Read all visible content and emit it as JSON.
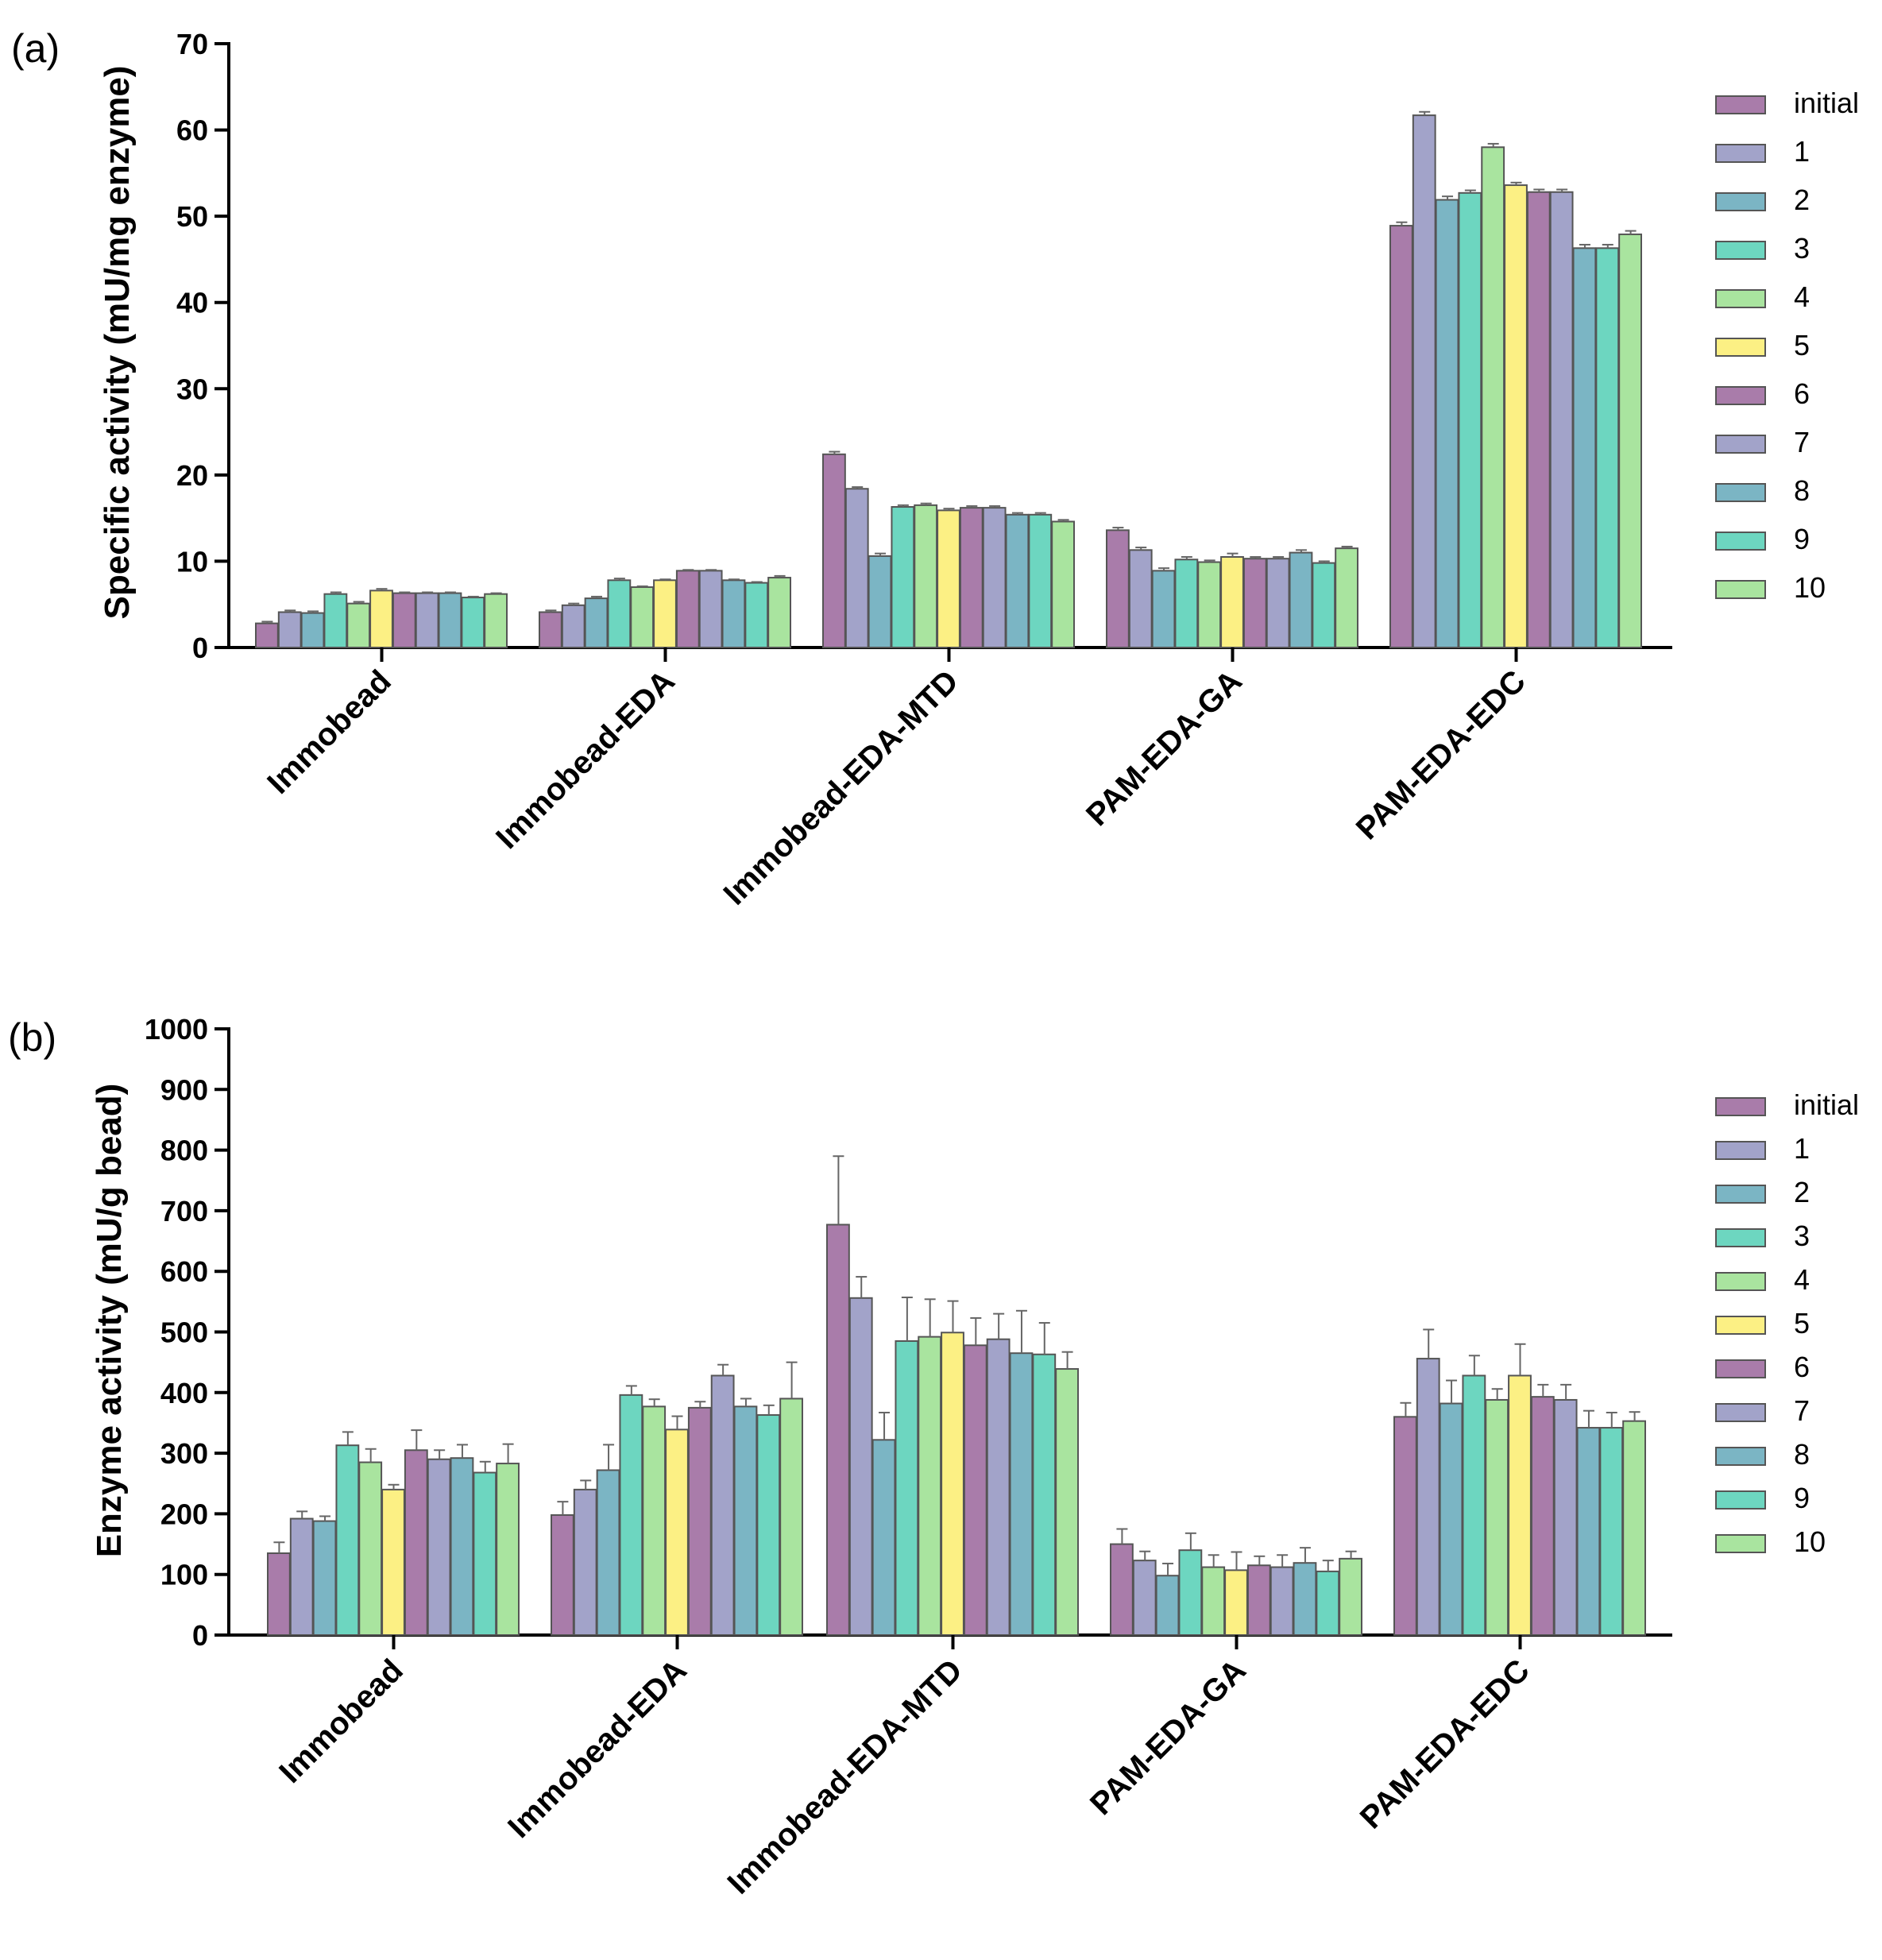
{
  "chart_data": [
    {
      "panel_label": "(a)",
      "type": "bar",
      "ylabel": "Specific activity (mU/mg enzyme)",
      "ylim": [
        0,
        70
      ],
      "yticks": [
        "0",
        "10",
        "20",
        "30",
        "40",
        "50",
        "60",
        "70"
      ],
      "categories": [
        "Immobead",
        "Immobead-EDA",
        "Immobead-EDA-MTD",
        "PAM-EDA-GA",
        "PAM-EDA-EDC"
      ],
      "legend_position": "right",
      "series": [
        {
          "name": "initial",
          "values": [
            2.8,
            4.1,
            22.4,
            13.6,
            48.9
          ],
          "errors": [
            0.2,
            0.2,
            0.3,
            0.3,
            0.4
          ]
        },
        {
          "name": "1",
          "values": [
            4.1,
            4.9,
            18.4,
            11.3,
            61.7
          ],
          "errors": [
            0.2,
            0.2,
            0.2,
            0.3,
            0.4
          ]
        },
        {
          "name": "2",
          "values": [
            4.0,
            5.7,
            10.6,
            8.9,
            51.9
          ],
          "errors": [
            0.2,
            0.2,
            0.3,
            0.3,
            0.4
          ]
        },
        {
          "name": "3",
          "values": [
            6.2,
            7.8,
            16.3,
            10.2,
            52.7
          ],
          "errors": [
            0.2,
            0.2,
            0.2,
            0.3,
            0.3
          ]
        },
        {
          "name": "4",
          "values": [
            5.1,
            7.0,
            16.5,
            9.9,
            58.0
          ],
          "errors": [
            0.2,
            0.1,
            0.2,
            0.2,
            0.4
          ]
        },
        {
          "name": "5",
          "values": [
            6.6,
            7.8,
            15.9,
            10.5,
            53.6
          ],
          "errors": [
            0.2,
            0.1,
            0.2,
            0.4,
            0.3
          ]
        },
        {
          "name": "6",
          "values": [
            6.3,
            8.9,
            16.2,
            10.3,
            52.8
          ],
          "errors": [
            0.1,
            0.1,
            0.2,
            0.2,
            0.3
          ]
        },
        {
          "name": "7",
          "values": [
            6.3,
            8.9,
            16.2,
            10.3,
            52.8
          ],
          "errors": [
            0.1,
            0.1,
            0.2,
            0.2,
            0.3
          ]
        },
        {
          "name": "8",
          "values": [
            6.3,
            7.8,
            15.4,
            11.0,
            46.3
          ],
          "errors": [
            0.1,
            0.1,
            0.2,
            0.3,
            0.4
          ]
        },
        {
          "name": "9",
          "values": [
            5.8,
            7.5,
            15.4,
            9.8,
            46.3
          ],
          "errors": [
            0.1,
            0.1,
            0.2,
            0.2,
            0.4
          ]
        },
        {
          "name": "10",
          "values": [
            6.2,
            8.1,
            14.6,
            11.5,
            47.9
          ],
          "errors": [
            0.1,
            0.2,
            0.2,
            0.2,
            0.4
          ]
        }
      ]
    },
    {
      "panel_label": "(b)",
      "type": "bar",
      "ylabel": "Enzyme activity (mU/g bead)",
      "ylim": [
        0,
        1000
      ],
      "yticks": [
        "0",
        "100",
        "200",
        "300",
        "400",
        "500",
        "600",
        "700",
        "800",
        "900",
        "1000"
      ],
      "categories": [
        "Immobead",
        "Immobead-EDA",
        "Immobead-EDA-MTD",
        "PAM-EDA-GA",
        "PAM-EDA-EDC"
      ],
      "legend_position": "right",
      "series": [
        {
          "name": "initial",
          "values": [
            135,
            198,
            677,
            150,
            360
          ],
          "errors": [
            18,
            22,
            113,
            25,
            23
          ]
        },
        {
          "name": "1",
          "values": [
            192,
            240,
            556,
            123,
            456
          ],
          "errors": [
            12,
            15,
            35,
            15,
            48
          ]
        },
        {
          "name": "2",
          "values": [
            188,
            272,
            322,
            98,
            382
          ],
          "errors": [
            8,
            42,
            45,
            20,
            38
          ]
        },
        {
          "name": "3",
          "values": [
            313,
            396,
            485,
            140,
            428
          ],
          "errors": [
            22,
            15,
            72,
            28,
            33
          ]
        },
        {
          "name": "4",
          "values": [
            285,
            377,
            492,
            112,
            388
          ],
          "errors": [
            22,
            12,
            62,
            20,
            18
          ]
        },
        {
          "name": "5",
          "values": [
            240,
            339,
            499,
            107,
            428
          ],
          "errors": [
            8,
            22,
            52,
            30,
            52
          ]
        },
        {
          "name": "6",
          "values": [
            305,
            375,
            478,
            115,
            393
          ],
          "errors": [
            33,
            10,
            45,
            15,
            20
          ]
        },
        {
          "name": "7",
          "values": [
            290,
            428,
            488,
            112,
            388
          ],
          "errors": [
            15,
            18,
            42,
            20,
            25
          ]
        },
        {
          "name": "8",
          "values": [
            292,
            377,
            465,
            119,
            342
          ],
          "errors": [
            22,
            13,
            70,
            25,
            28
          ]
        },
        {
          "name": "9",
          "values": [
            268,
            363,
            463,
            105,
            342
          ],
          "errors": [
            18,
            16,
            52,
            18,
            25
          ]
        },
        {
          "name": "10",
          "values": [
            283,
            390,
            439,
            126,
            353
          ],
          "errors": [
            32,
            60,
            28,
            12,
            15
          ]
        }
      ]
    }
  ],
  "colors": [
    "#a97caa",
    "#a2a3c9",
    "#7bb5c4",
    "#6dd6c0",
    "#a9e49f",
    "#fcf084",
    "#a97caa",
    "#a2a3c9",
    "#7bb5c4",
    "#6dd6c0",
    "#a9e49f"
  ],
  "bar_stroke": "#555555"
}
